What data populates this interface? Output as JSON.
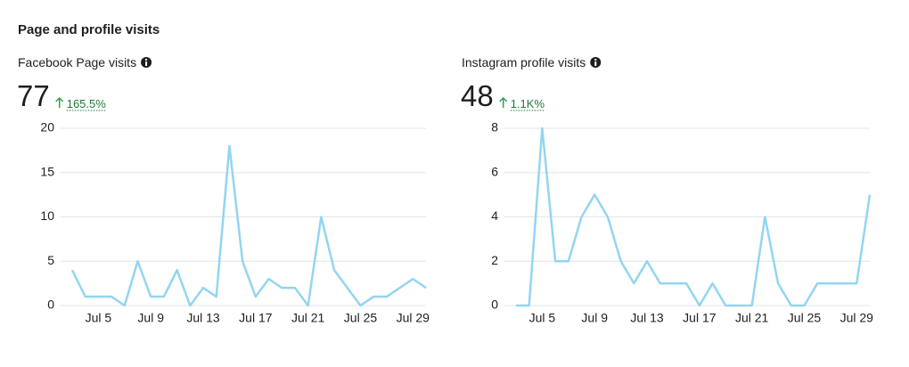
{
  "page_title": "Page and profile visits",
  "chart_data": [
    {
      "type": "line",
      "title": "Facebook Page visits",
      "total": 77,
      "change": "165.5%",
      "categories": [
        null,
        null,
        "Jul 5",
        null,
        null,
        null,
        "Jul 9",
        null,
        null,
        null,
        "Jul 13",
        null,
        null,
        null,
        "Jul 17",
        null,
        null,
        null,
        "Jul 21",
        null,
        null,
        null,
        "Jul 25",
        null,
        null,
        null,
        "Jul 29",
        null
      ],
      "values": [
        4,
        1,
        1,
        1,
        0,
        5,
        1,
        1,
        4,
        0,
        2,
        1,
        18,
        5,
        1,
        3,
        2,
        2,
        0,
        10,
        4,
        2,
        0,
        1,
        1,
        2,
        3,
        2
      ],
      "color": "#93d5f1",
      "ylim": [
        0,
        20
      ],
      "yticks": [
        0,
        5,
        10,
        15,
        20
      ],
      "grid": true
    },
    {
      "type": "line",
      "title": "Instagram profile visits",
      "total": 48,
      "change": "1.1K%",
      "categories": [
        null,
        null,
        "Jul 5",
        null,
        null,
        null,
        "Jul 9",
        null,
        null,
        null,
        "Jul 13",
        null,
        null,
        null,
        "Jul 17",
        null,
        null,
        null,
        "Jul 21",
        null,
        null,
        null,
        "Jul 25",
        null,
        null,
        null,
        "Jul 29",
        null
      ],
      "values": [
        0,
        0,
        8,
        2,
        2,
        4,
        5,
        4,
        2,
        1,
        2,
        1,
        1,
        1,
        0,
        1,
        0,
        0,
        0,
        4,
        1,
        0,
        0,
        1,
        1,
        1,
        1,
        5
      ],
      "color": "#93d5f1",
      "ylim": [
        0,
        8
      ],
      "yticks": [
        0,
        2,
        4,
        6,
        8
      ],
      "grid": true
    }
  ]
}
